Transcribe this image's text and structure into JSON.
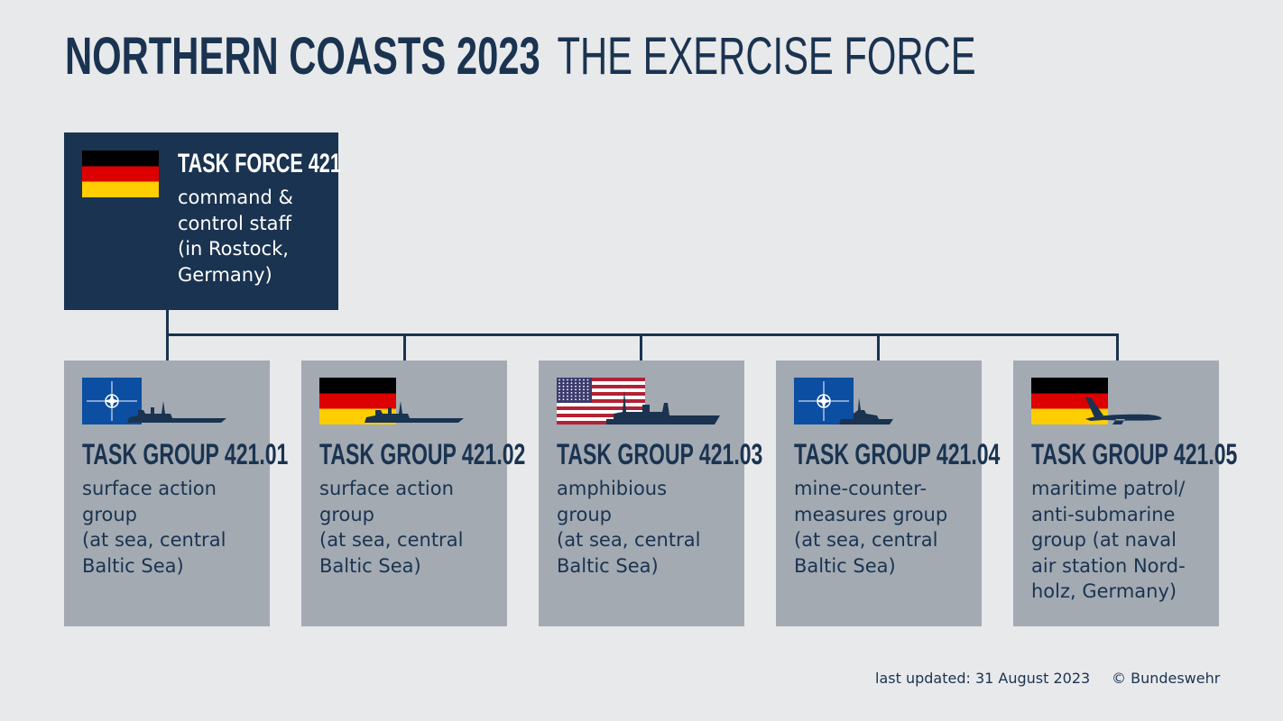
{
  "header": {
    "title_bold": "NORTHERN COASTS 2023",
    "title_light": "THE EXERCISE FORCE"
  },
  "task_force": {
    "flag": "germany",
    "title": "TASK FORCE 421",
    "lines": [
      "command &",
      "control staff",
      "(in Rostock,",
      "Germany)"
    ]
  },
  "groups": [
    {
      "flag": "nato",
      "vehicle": "frigate-icon",
      "title": "TASK GROUP 421.01",
      "lines": [
        "surface action",
        "group",
        "(at sea, central",
        "Baltic Sea)"
      ]
    },
    {
      "flag": "germany",
      "vehicle": "frigate-icon",
      "title": "TASK GROUP 421.02",
      "lines": [
        "surface action",
        "group",
        "(at sea, central",
        "Baltic Sea)"
      ]
    },
    {
      "flag": "usa",
      "vehicle": "amphibious-ship-icon",
      "title": "TASK GROUP 421.03",
      "lines": [
        "amphibious",
        "group",
        "(at sea, central",
        "Baltic Sea)"
      ]
    },
    {
      "flag": "nato",
      "vehicle": "minehunter-icon",
      "title": "TASK GROUP 421.04",
      "lines": [
        "mine-counter-",
        "measures group",
        "(at sea, central",
        "Baltic Sea)"
      ]
    },
    {
      "flag": "germany",
      "vehicle": "patrol-aircraft-icon",
      "title": "TASK GROUP 421.05",
      "lines": [
        "maritime patrol/",
        "anti-submarine",
        "group (at naval",
        "air station Nord-",
        "holz, Germany)"
      ]
    }
  ],
  "footer": {
    "updated": "last updated: 31 August 2023",
    "copyright": "© Bundeswehr"
  },
  "colors": {
    "navy": "#1a3350",
    "card": "#a3aab2",
    "background": "#e8e9eb",
    "nato_blue": "#0b4ea2"
  }
}
